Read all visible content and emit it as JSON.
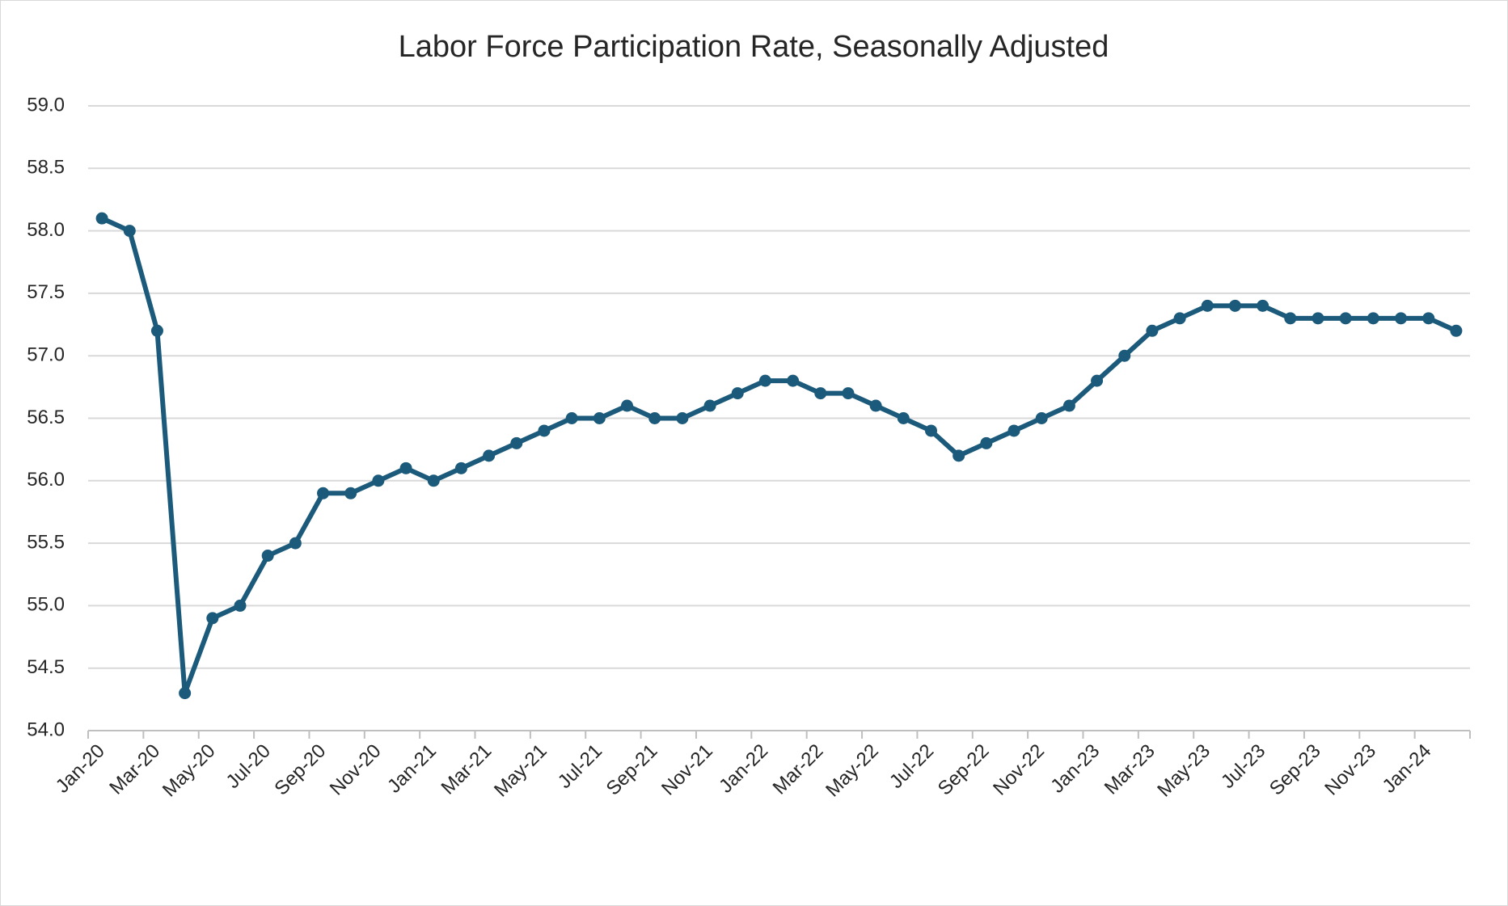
{
  "chart_data": {
    "type": "line",
    "title": "Labor Force Participation Rate, Seasonally Adjusted",
    "categories": [
      "Jan-20",
      null,
      "Mar-20",
      null,
      "May-20",
      null,
      "Jul-20",
      null,
      "Sep-20",
      null,
      "Nov-20",
      null,
      "Jan-21",
      null,
      "Mar-21",
      null,
      "May-21",
      null,
      "Jul-21",
      null,
      "Sep-21",
      null,
      "Nov-21",
      null,
      "Jan-22",
      null,
      "Mar-22",
      null,
      "May-22",
      null,
      "Jul-22",
      null,
      "Sep-22",
      null,
      "Nov-22",
      null,
      "Jan-23",
      null,
      "Mar-23",
      null,
      "May-23",
      null,
      "Jul-23",
      null,
      "Sep-23",
      null,
      "Nov-23",
      null,
      "Jan-24",
      null
    ],
    "series": [
      {
        "name": "Labor Force Participation Rate",
        "color": "#1b5a7a",
        "values": [
          58.1,
          58.0,
          57.2,
          54.3,
          54.9,
          55.0,
          55.4,
          55.5,
          55.9,
          55.9,
          56.0,
          56.1,
          56.0,
          56.1,
          56.2,
          56.3,
          56.4,
          56.5,
          56.5,
          56.6,
          56.5,
          56.5,
          56.6,
          56.7,
          56.8,
          56.8,
          56.7,
          56.7,
          56.6,
          56.5,
          56.4,
          56.2,
          56.3,
          56.4,
          56.5,
          56.6,
          56.8,
          57.0,
          57.2,
          57.3,
          57.4,
          57.4,
          57.4,
          57.3,
          57.3,
          57.3,
          57.3,
          57.3,
          57.3,
          57.2
        ]
      }
    ],
    "ylim": [
      54.0,
      59.0
    ],
    "yticks": [
      {
        "value": 54.0,
        "label": "54.0"
      },
      {
        "value": 54.5,
        "label": "54.5"
      },
      {
        "value": 55.0,
        "label": "55.0"
      },
      {
        "value": 55.5,
        "label": "55.5"
      },
      {
        "value": 56.0,
        "label": "56.0"
      },
      {
        "value": 56.5,
        "label": "56.5"
      },
      {
        "value": 57.0,
        "label": "57.0"
      },
      {
        "value": 57.5,
        "label": "57.5"
      },
      {
        "value": 58.0,
        "label": "58.0"
      },
      {
        "value": 58.5,
        "label": "58.5"
      },
      {
        "value": 59.0,
        "label": "59.0"
      }
    ],
    "grid": true
  }
}
